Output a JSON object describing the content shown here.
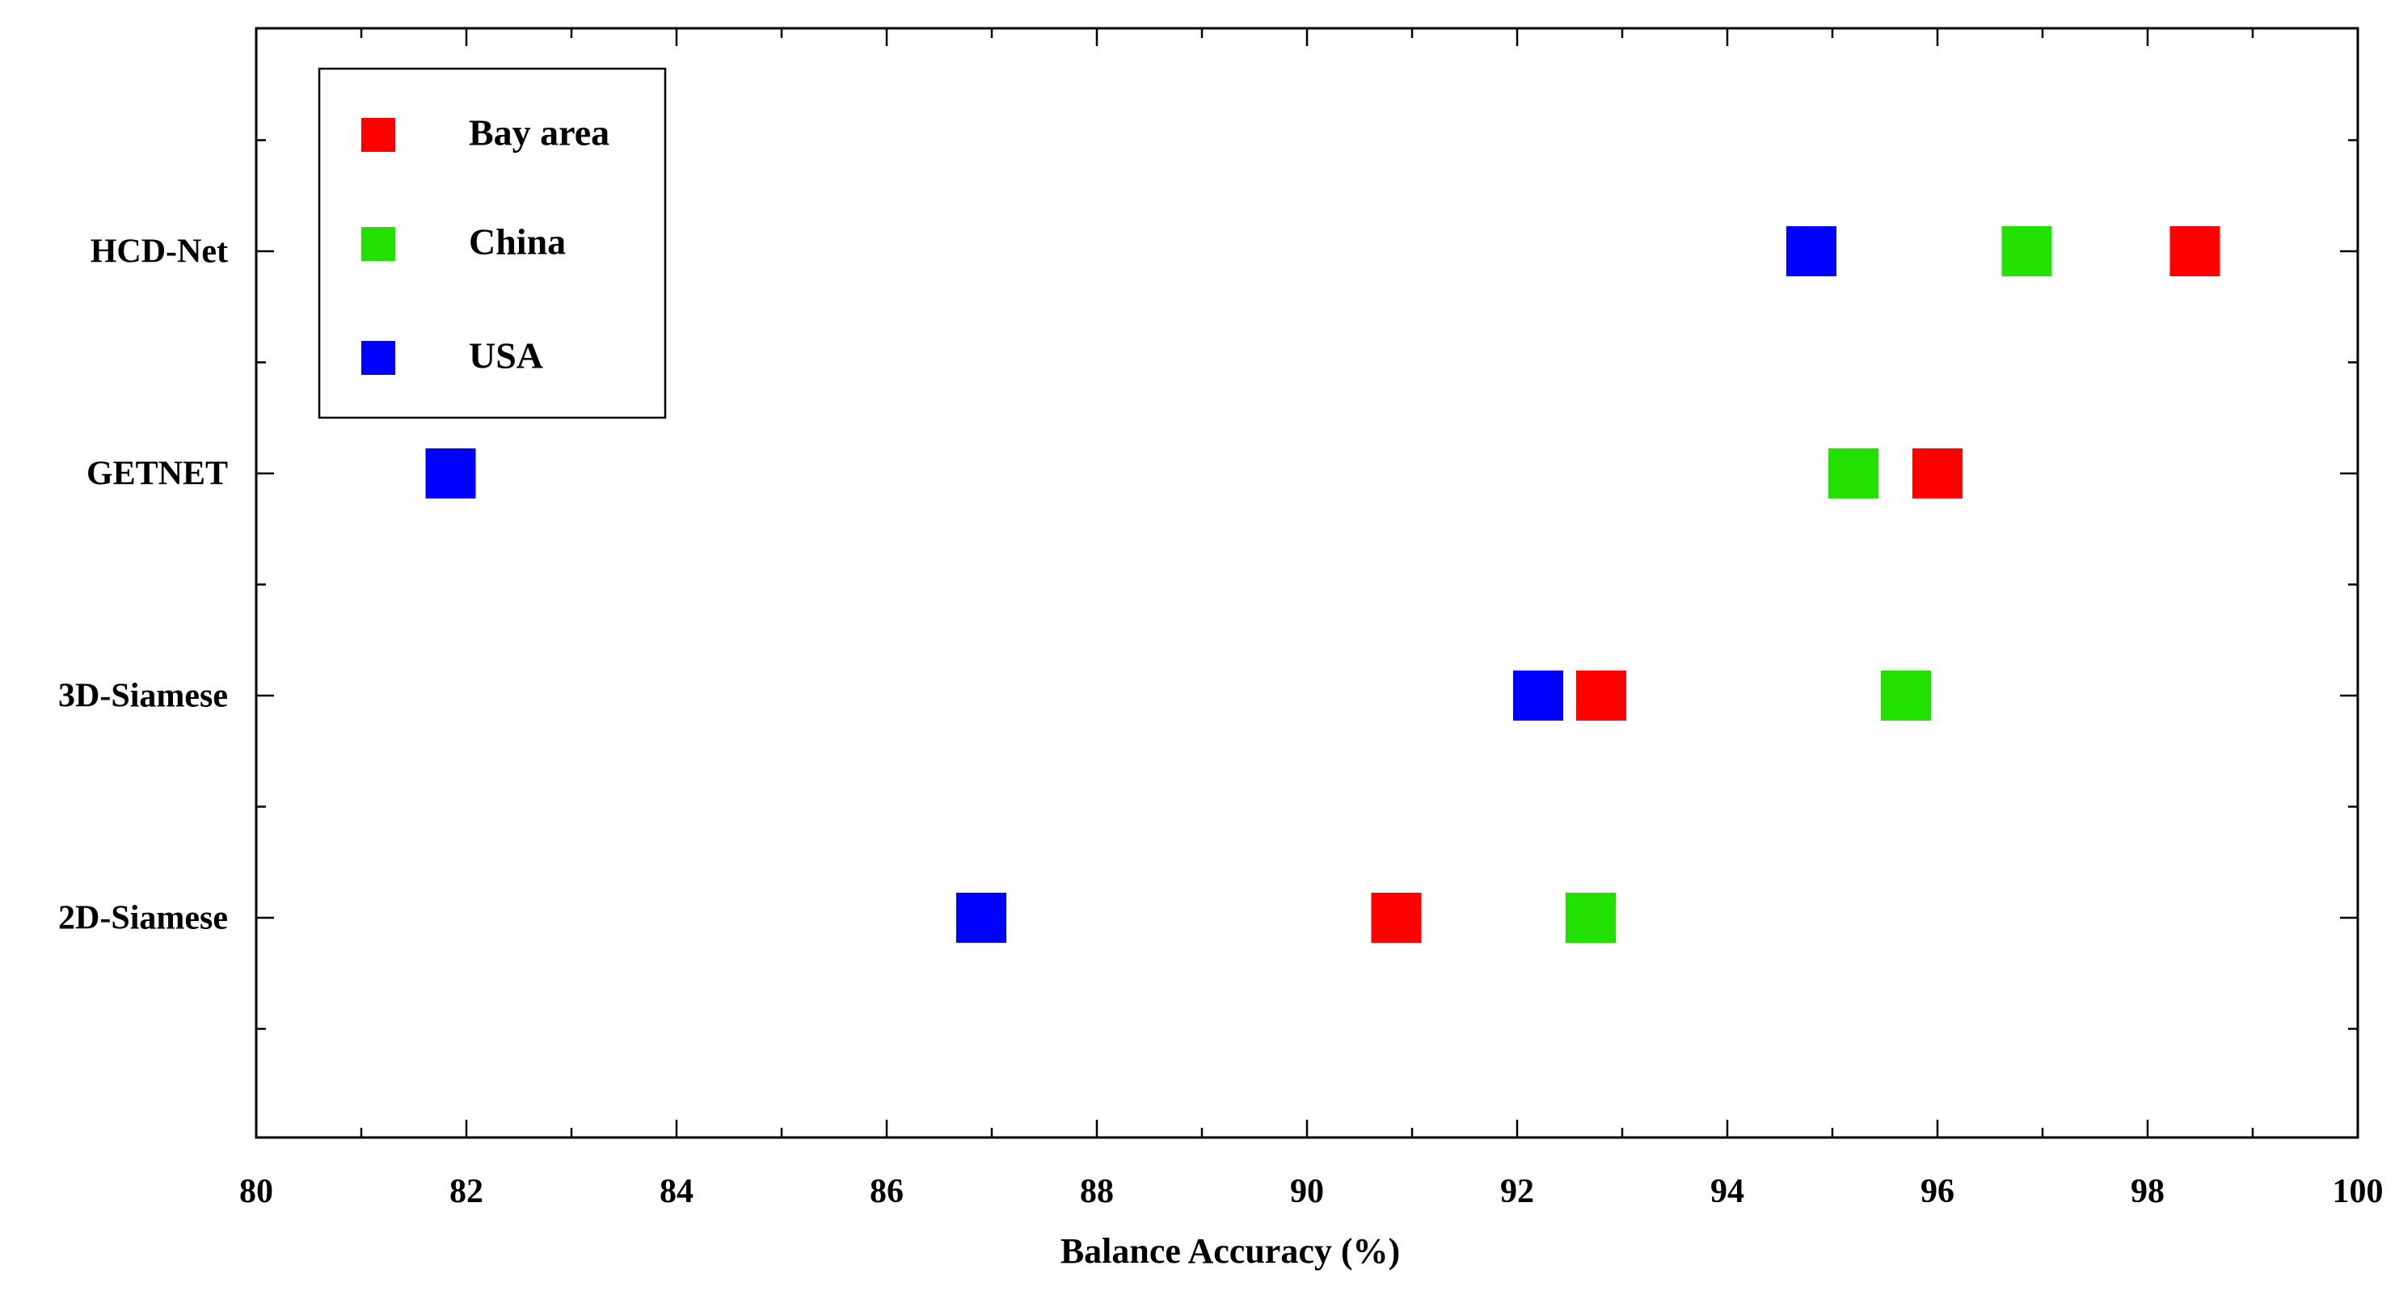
{
  "chart_data": {
    "type": "scatter",
    "title": "",
    "xlabel": "Balance Accuracy (%)",
    "ylabel": "",
    "xlim": [
      80,
      100
    ],
    "x_ticks": [
      "80",
      "82",
      "84",
      "86",
      "88",
      "90",
      "92",
      "94",
      "96",
      "98",
      "100"
    ],
    "categories": [
      "HCD-Net",
      "GETNET",
      "3D-Siamese",
      "2D-Siamese"
    ],
    "grid": false,
    "legend_position": "top-left",
    "series": [
      {
        "name": "Bay area",
        "color": "#ff0000",
        "values": [
          98.45,
          96.0,
          92.8,
          90.85
        ]
      },
      {
        "name": "China",
        "color": "#22e000",
        "values": [
          96.85,
          95.2,
          95.7,
          92.7
        ]
      },
      {
        "name": "USA",
        "color": "#0000ff",
        "values": [
          94.8,
          81.85,
          92.2,
          86.9
        ]
      }
    ]
  }
}
